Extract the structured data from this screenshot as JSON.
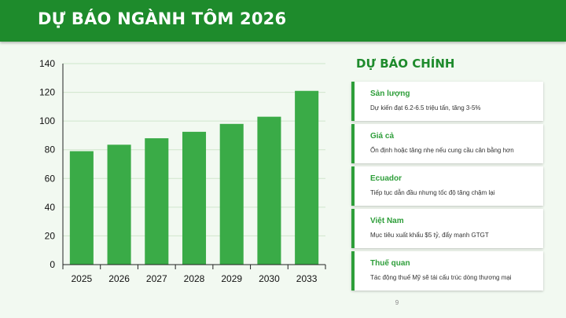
{
  "header": {
    "title": "DỰ BÁO NGÀNH TÔM 2026"
  },
  "sidebar": {
    "title": "DỰ BÁO CHÍNH",
    "cards": [
      {
        "title": "Sản lượng",
        "desc": "Dự kiến đạt 6.2-6.5 triệu tấn, tăng 3-5%"
      },
      {
        "title": "Giá cả",
        "desc": "Ổn định hoặc tăng nhẹ nếu cung cầu cân bằng hơn"
      },
      {
        "title": "Ecuador",
        "desc": "Tiếp tục dẫn đầu nhưng tốc độ tăng chậm lại"
      },
      {
        "title": "Việt Nam",
        "desc": "Mục tiêu xuất khẩu $5 tỷ, đẩy mạnh GTGT"
      },
      {
        "title": "Thuế quan",
        "desc": "Tác động thuế Mỹ sẽ tái cấu trúc dòng thương mại"
      }
    ]
  },
  "page_number": "9",
  "colors": {
    "header": "#1e8b2c",
    "bar": "#3aab47",
    "accent": "#2e9e3a"
  },
  "chart_data": {
    "type": "bar",
    "categories": [
      "2025",
      "2026",
      "2027",
      "2028",
      "2029",
      "2030",
      "2033"
    ],
    "values": [
      79,
      83.5,
      88,
      92.5,
      98,
      103,
      121
    ],
    "title": "",
    "xlabel": "",
    "ylabel": "",
    "ylim": [
      0,
      140
    ],
    "yticks": [
      0,
      20,
      40,
      60,
      80,
      100,
      120,
      140
    ],
    "grid": true,
    "legend": "none"
  }
}
